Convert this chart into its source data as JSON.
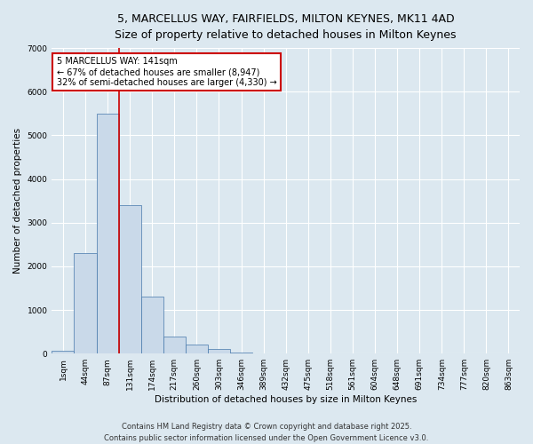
{
  "title_line1": "5, MARCELLUS WAY, FAIRFIELDS, MILTON KEYNES, MK11 4AD",
  "title_line2": "Size of property relative to detached houses in Milton Keynes",
  "xlabel": "Distribution of detached houses by size in Milton Keynes",
  "ylabel": "Number of detached properties",
  "categories": [
    "1sqm",
    "44sqm",
    "87sqm",
    "131sqm",
    "174sqm",
    "217sqm",
    "260sqm",
    "303sqm",
    "346sqm",
    "389sqm",
    "432sqm",
    "475sqm",
    "518sqm",
    "561sqm",
    "604sqm",
    "648sqm",
    "691sqm",
    "734sqm",
    "777sqm",
    "820sqm",
    "863sqm"
  ],
  "values": [
    60,
    2300,
    5500,
    3400,
    1300,
    400,
    200,
    100,
    30,
    10,
    5,
    2,
    1,
    0,
    0,
    0,
    0,
    0,
    0,
    0,
    0
  ],
  "bar_color": "#c9d9e9",
  "bar_edge_color": "#4477aa",
  "vline_x_index": 3,
  "vline_color": "#cc0000",
  "annotation_text": "5 MARCELLUS WAY: 141sqm\n← 67% of detached houses are smaller (8,947)\n32% of semi-detached houses are larger (4,330) →",
  "annotation_box_facecolor": "#ffffff",
  "annotation_box_edgecolor": "#cc0000",
  "ylim": [
    0,
    7000
  ],
  "yticks": [
    0,
    1000,
    2000,
    3000,
    4000,
    5000,
    6000,
    7000
  ],
  "bg_color": "#dce8f0",
  "grid_color": "#ffffff",
  "footer_line1": "Contains HM Land Registry data © Crown copyright and database right 2025.",
  "footer_line2": "Contains public sector information licensed under the Open Government Licence v3.0.",
  "title_fontsize": 9,
  "axis_label_fontsize": 7.5,
  "tick_fontsize": 6.5,
  "annotation_fontsize": 7,
  "footer_fontsize": 6
}
